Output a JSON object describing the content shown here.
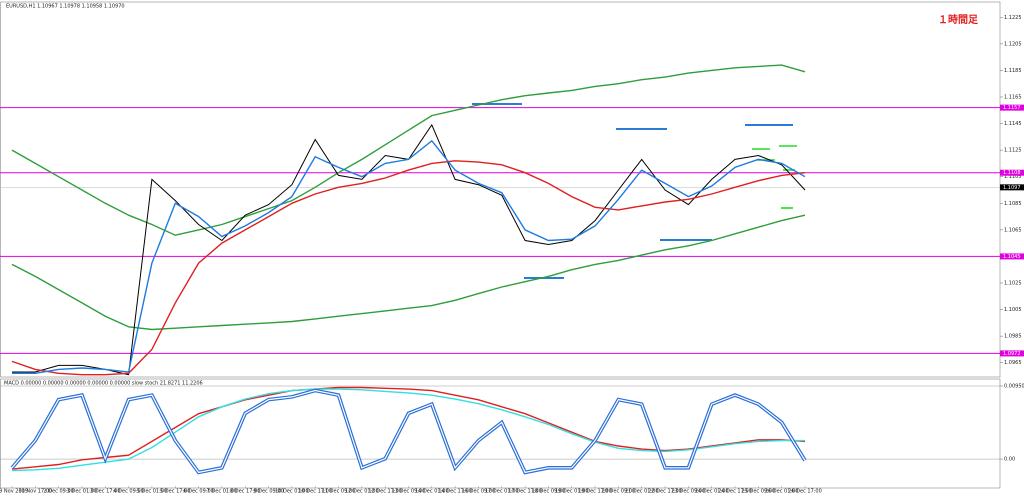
{
  "chart_data": [
    {
      "type": "line",
      "title": "EURUSD,H1 1.10967 1.10978 1.10958 1.10970",
      "annotation": "１時間足",
      "categories": [
        "29 Nov 2019",
        "30 Nov 17:00",
        "2 Dec 09:00",
        "3 Dec 01:00",
        "3 Dec 17:00",
        "4 Dec 09:00",
        "5 Dec 01:00",
        "5 Dec 17:00",
        "6 Dec 09:00",
        "7 Dec 01:00",
        "8 Dec 17:00",
        "9 Dec 09:00",
        "10 Dec 01:00",
        "10 Dec 17:00",
        "11 Dec 09:00",
        "12 Dec 01:00",
        "12 Dec 17:00",
        "13 Dec 09:00",
        "14 Dec 01:00",
        "14 Dec 17:00",
        "16 Dec 09:00",
        "17 Dec 01:00",
        "17 Dec 17:00",
        "18 Dec 09:00",
        "19 Dec 01:00",
        "19 Dec 17:00",
        "20 Dec 09:00",
        "21 Dec 01:00",
        "22 Dec 17:00",
        "23 Dec 09:00",
        "24 Dec 01:00",
        "24 Dec 17:00",
        "25 Dec 09:00",
        "26 Dec 01:00",
        "26 Dec 17:00"
      ],
      "series": [
        {
          "color": "#2e9e3a",
          "values": [
            1.1125,
            1.1115,
            1.1105,
            1.1095,
            1.1085,
            1.1076,
            1.1069,
            1.1061,
            1.1065,
            1.1069,
            1.1075,
            1.1081,
            1.1087,
            1.1097,
            1.1108,
            1.1118,
            1.1129,
            1.114,
            1.1151,
            1.1155,
            1.1159,
            1.1163,
            1.1166,
            1.1168,
            1.117,
            1.1173,
            1.1175,
            1.1178,
            1.118,
            1.1183,
            1.1185,
            1.1187,
            1.1188,
            1.1189,
            1.1184
          ]
        },
        {
          "color": "#2e9e3a",
          "values": [
            1.1039,
            1.103,
            1.102,
            1.101,
            1.1,
            1.0992,
            1.099,
            1.0991,
            1.0992,
            1.0993,
            1.0994,
            1.0995,
            1.0996,
            1.0998,
            1.1,
            1.1002,
            1.1004,
            1.1006,
            1.1008,
            1.1012,
            1.1017,
            1.1022,
            1.1026,
            1.103,
            1.1035,
            1.1039,
            1.1042,
            1.1046,
            1.105,
            1.1053,
            1.1057,
            1.1062,
            1.1067,
            1.1072,
            1.1076
          ]
        },
        {
          "color": "#000000",
          "values": [
            1.0958,
            1.0958,
            1.0963,
            1.0963,
            1.096,
            1.0956,
            1.1103,
            1.1087,
            1.1069,
            1.1057,
            1.1076,
            1.1084,
            1.1099,
            1.1133,
            1.1106,
            1.1103,
            1.1121,
            1.1118,
            1.1144,
            1.1103,
            1.1099,
            1.1091,
            1.1057,
            1.1054,
            1.1057,
            1.1072,
            1.1095,
            1.1118,
            1.1095,
            1.1084,
            1.1103,
            1.1118,
            1.1121,
            1.1114,
            1.1095
          ]
        },
        {
          "color": "#e02020",
          "values": [
            1.0966,
            1.096,
            1.0957,
            1.0956,
            1.0956,
            1.0957,
            1.0975,
            1.101,
            1.104,
            1.1055,
            1.1065,
            1.1075,
            1.1085,
            1.1092,
            1.1097,
            1.11,
            1.1104,
            1.111,
            1.1115,
            1.1117,
            1.1116,
            1.1114,
            1.1108,
            1.11,
            1.109,
            1.1082,
            1.108,
            1.1083,
            1.1086,
            1.1088,
            1.1092,
            1.1097,
            1.1102,
            1.1106,
            1.1108
          ]
        },
        {
          "color": "#1e7be0",
          "values": [
            1.0957,
            1.0957,
            1.096,
            1.0961,
            1.096,
            1.0958,
            1.104,
            1.1085,
            1.1075,
            1.106,
            1.1068,
            1.1078,
            1.109,
            1.112,
            1.1112,
            1.1105,
            1.1115,
            1.1118,
            1.1132,
            1.111,
            1.11,
            1.1093,
            1.1065,
            1.1057,
            1.1058,
            1.1068,
            1.1088,
            1.111,
            1.11,
            1.109,
            1.1098,
            1.1112,
            1.1118,
            1.1115,
            1.1105
          ]
        }
      ],
      "hlines": [
        1.1157,
        1.1108,
        1.1045,
        1.0972
      ],
      "hline_color": "#e000e0",
      "last_price": 1.1097,
      "ylim": [
        1.0955,
        1.1235
      ],
      "yticks": [
        1.0965,
        1.0985,
        1.1005,
        1.1025,
        1.1045,
        1.1065,
        1.1085,
        1.1105,
        1.1125,
        1.1145,
        1.1165,
        1.1185,
        1.1205,
        1.1225
      ]
    },
    {
      "type": "line",
      "title": "MACD 0.00000 0.00000 0.00000 0.00000 0.00000 slow stoch 21.8271 11.2206",
      "series": [
        {
          "color": "#e02020",
          "values": [
            -0.0013,
            -0.001,
            -0.0007,
            -0.0001,
            0.0002,
            0.0005,
            0.0023,
            0.0041,
            0.0059,
            0.0068,
            0.0077,
            0.0083,
            0.0089,
            0.0091,
            0.0093,
            0.0093,
            0.0092,
            0.0091,
            0.0089,
            0.0083,
            0.0077,
            0.0068,
            0.0059,
            0.0047,
            0.0035,
            0.0023,
            0.0017,
            0.0013,
            0.0011,
            0.0013,
            0.0017,
            0.0021,
            0.0025,
            0.0025,
            0.0023
          ]
        },
        {
          "color": "#30e0e0",
          "values": [
            -0.0015,
            -0.0014,
            -0.0012,
            -0.0008,
            -0.0004,
            0,
            0.0015,
            0.0035,
            0.0055,
            0.0068,
            0.0078,
            0.0085,
            0.0089,
            0.0091,
            0.0091,
            0.009,
            0.0088,
            0.0086,
            0.0083,
            0.0078,
            0.0072,
            0.0064,
            0.0055,
            0.0045,
            0.0033,
            0.0022,
            0.0014,
            0.0011,
            0.001,
            0.0012,
            0.0016,
            0.002,
            0.0023,
            0.0024,
            0.0024
          ]
        },
        {
          "color": "#2a6fd8",
          "axis": "y2",
          "values": [
            15,
            45,
            90,
            95,
            25,
            90,
            95,
            45,
            10,
            15,
            75,
            90,
            93,
            100,
            95,
            15,
            25,
            75,
            85,
            15,
            45,
            65,
            10,
            15,
            15,
            45,
            90,
            85,
            15,
            15,
            85,
            95,
            85,
            65,
            23
          ]
        }
      ],
      "ylim": [
        -0.0035,
        0.0095
      ],
      "yticks": [
        {
          "value": 0,
          "label": "0.00"
        },
        {
          "value": 0.0095,
          "label": "0.00950"
        }
      ],
      "y2lim": [
        -5,
        105
      ]
    }
  ]
}
